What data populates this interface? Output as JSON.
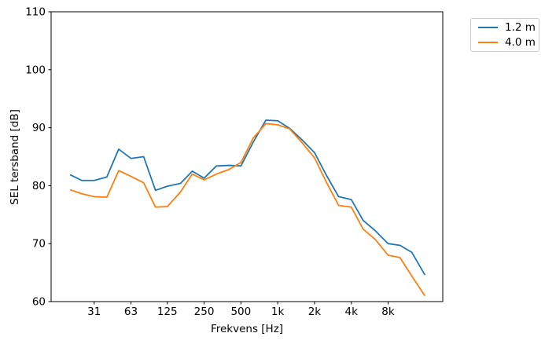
{
  "chart_data": {
    "type": "line",
    "title": "",
    "xlabel": "Frekvens [Hz]",
    "ylabel": "SEL tersband [dB]",
    "x_scale": "log",
    "grid": false,
    "xlim": [
      14.0,
      22400
    ],
    "ylim": [
      60,
      110
    ],
    "x": [
      20,
      25,
      31.5,
      40,
      50,
      63,
      80,
      100,
      125,
      160,
      200,
      250,
      315,
      400,
      500,
      630,
      800,
      1000,
      1250,
      1600,
      2000,
      2500,
      3150,
      4000,
      5000,
      6300,
      8000,
      10000,
      12500,
      16000
    ],
    "series": [
      {
        "name": "1.2 m",
        "color": "#1f77b4",
        "values": [
          81.9,
          80.9,
          80.9,
          81.5,
          86.3,
          84.7,
          85.0,
          79.2,
          79.9,
          80.4,
          82.5,
          81.3,
          83.4,
          83.5,
          83.4,
          87.5,
          91.3,
          91.2,
          89.9,
          87.8,
          85.7,
          81.8,
          78.1,
          77.6,
          74.0,
          72.2,
          70.0,
          69.7,
          68.5,
          64.6
        ]
      },
      {
        "name": "4.0 m",
        "color": "#ff7f0e",
        "values": [
          79.3,
          78.6,
          78.1,
          78.0,
          82.6,
          81.6,
          80.5,
          76.3,
          76.4,
          78.9,
          82.0,
          81.0,
          82.0,
          82.8,
          84.0,
          88.2,
          90.7,
          90.5,
          89.8,
          87.3,
          84.8,
          80.6,
          76.6,
          76.3,
          72.5,
          70.7,
          68.0,
          67.6,
          64.4,
          61.0
        ]
      }
    ],
    "x_ticks": [
      {
        "value": 31.5,
        "label": "31"
      },
      {
        "value": 63,
        "label": "63"
      },
      {
        "value": 125,
        "label": "125"
      },
      {
        "value": 250,
        "label": "250"
      },
      {
        "value": 500,
        "label": "500"
      },
      {
        "value": 1000,
        "label": "1k"
      },
      {
        "value": 2000,
        "label": "2k"
      },
      {
        "value": 4000,
        "label": "4k"
      },
      {
        "value": 8000,
        "label": "8k"
      }
    ],
    "y_ticks": [
      {
        "value": 60,
        "label": "60"
      },
      {
        "value": 70,
        "label": "70"
      },
      {
        "value": 80,
        "label": "80"
      },
      {
        "value": 90,
        "label": "90"
      },
      {
        "value": 100,
        "label": "100"
      },
      {
        "value": 110,
        "label": "110"
      }
    ],
    "legend_position": "upper-right-outside"
  },
  "legend": {
    "items": [
      {
        "label": "1.2 m",
        "color": "#1f77b4"
      },
      {
        "label": "4.0 m",
        "color": "#ff7f0e"
      }
    ]
  },
  "axes_style": {
    "spine_color": "#000000",
    "background": "#ffffff"
  }
}
